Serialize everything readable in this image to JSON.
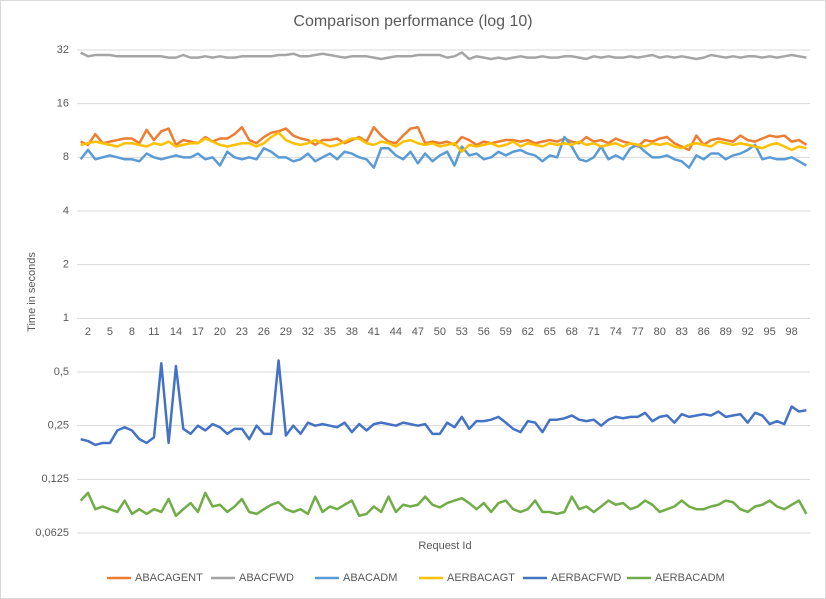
{
  "chart_data": {
    "type": "line",
    "title": "Comparison performance (log 10)",
    "x_label": "Request Id",
    "y_label": "Time in seconds",
    "yscale": "log",
    "grid": true,
    "legend": "bottom",
    "xaxis_crosses": 1,
    "ylim": [
      0.0625,
      32
    ],
    "yticks": [
      {
        "value": 0.0625,
        "label": "0,0625"
      },
      {
        "value": 0.125,
        "label": "0,125"
      },
      {
        "value": 0.25,
        "label": "0,25"
      },
      {
        "value": 0.5,
        "label": "0,5"
      },
      1,
      2,
      4,
      8,
      16,
      32
    ],
    "categories": [
      null,
      "2",
      null,
      null,
      "5",
      null,
      null,
      "8",
      null,
      null,
      "11",
      null,
      null,
      "14",
      null,
      null,
      "17",
      null,
      null,
      "20",
      null,
      null,
      "23",
      null,
      null,
      "26",
      null,
      null,
      "29",
      null,
      null,
      "32",
      null,
      null,
      "35",
      null,
      null,
      "38",
      null,
      null,
      "41",
      null,
      null,
      "44",
      null,
      null,
      "47",
      null,
      null,
      "50",
      null,
      null,
      "53",
      null,
      null,
      "56",
      null,
      null,
      "59",
      null,
      null,
      "62",
      null,
      null,
      "65",
      null,
      null,
      "68",
      null,
      null,
      "71",
      null,
      null,
      "74",
      null,
      null,
      "77",
      null,
      null,
      "80",
      null,
      null,
      "83",
      null,
      null,
      "86",
      null,
      null,
      "89",
      null,
      null,
      "92",
      null,
      null,
      "95",
      null,
      null,
      "98",
      null,
      null
    ],
    "series": [
      {
        "name": "ABACAGENT",
        "color": "#ed7d31",
        "values": [
          9.8,
          9.4,
          10.8,
          9.6,
          9.8,
          10,
          10.2,
          10.2,
          9.6,
          11.4,
          10,
          11.2,
          11.6,
          9.4,
          10,
          9.8,
          9.6,
          10.4,
          9.8,
          10.2,
          10.2,
          10.8,
          11.8,
          10,
          9.6,
          10.4,
          11,
          11.2,
          11.6,
          10.6,
          10.2,
          10,
          9.4,
          10,
          10,
          10.2,
          9.6,
          10,
          10.4,
          9.8,
          11.8,
          10.6,
          9.8,
          9.6,
          10.6,
          11.6,
          11.8,
          9.6,
          9.8,
          9.6,
          9.8,
          9.4,
          10.4,
          10,
          9.4,
          9.8,
          9.6,
          9.8,
          10,
          10,
          9.8,
          10,
          9.6,
          9.8,
          10,
          9.8,
          10.2,
          9.8,
          9.6,
          10.4,
          9.8,
          10,
          9.6,
          10.2,
          9.8,
          9.6,
          9.2,
          10,
          9.8,
          10.2,
          10.4,
          9.6,
          9.2,
          8.8,
          10.6,
          9.4,
          10,
          10.2,
          10,
          9.8,
          10.6,
          10,
          9.8,
          10.2,
          10.6,
          10.4,
          10.6,
          9.8,
          10,
          9.4
        ]
      },
      {
        "name": "ABACFWD",
        "color": "#a5a5a5",
        "values": [
          31,
          29.5,
          30,
          30,
          30,
          29.5,
          29.5,
          29.5,
          29.5,
          29.5,
          29.5,
          29.5,
          29,
          29,
          30,
          29,
          29,
          29.5,
          29,
          29.5,
          29,
          29,
          29.5,
          29.5,
          29.5,
          29.5,
          29.5,
          30,
          30,
          30.5,
          29.5,
          29.5,
          30,
          30.5,
          30,
          29.5,
          29,
          29.5,
          29.5,
          29.5,
          29,
          28.5,
          29,
          29.5,
          29.5,
          29.5,
          30,
          30,
          30,
          30,
          29,
          29.5,
          31,
          28.5,
          29.5,
          29,
          28.5,
          29,
          28.5,
          29,
          29.5,
          29,
          29,
          29.5,
          29,
          29,
          29.5,
          29.5,
          29,
          28.5,
          29.5,
          29,
          29.5,
          29,
          29,
          29.5,
          29,
          29.5,
          30,
          29,
          29.5,
          29,
          29.5,
          29,
          28.5,
          29,
          30,
          29.5,
          29,
          29.5,
          29,
          29.5,
          29.5,
          29,
          29.5,
          29,
          29.5,
          30,
          29.5,
          29
        ]
      },
      {
        "name": "ABACADM",
        "color": "#5b9bd5",
        "values": [
          7.8,
          8.8,
          7.8,
          8,
          8.2,
          8,
          7.8,
          7.8,
          7.6,
          8.4,
          8,
          7.8,
          8,
          8.2,
          8,
          8,
          8.4,
          7.8,
          8,
          7.2,
          8.6,
          8,
          7.8,
          8,
          7.8,
          9,
          8.6,
          8,
          8,
          7.6,
          7.8,
          8.4,
          7.6,
          8,
          8.4,
          7.8,
          8.6,
          8.4,
          8,
          7.8,
          7,
          9,
          9,
          8.2,
          7.8,
          8.6,
          7.4,
          8.4,
          7.6,
          8.2,
          8.6,
          7.2,
          9.2,
          8.2,
          8.4,
          7.8,
          8,
          8.6,
          8.2,
          8.6,
          8.8,
          8.4,
          8.2,
          7.6,
          8.2,
          8,
          10.4,
          9.2,
          7.8,
          7.6,
          8,
          9.2,
          7.8,
          8.2,
          7.8,
          9,
          9.4,
          8.6,
          8,
          8,
          8.2,
          7.8,
          7.6,
          7,
          8.2,
          7.8,
          8.4,
          8.4,
          7.8,
          8.2,
          8.4,
          8.8,
          9.4,
          7.8,
          8,
          7.8,
          7.8,
          8,
          7.6,
          7.2
        ]
      },
      {
        "name": "AERBACAGT",
        "color": "#ffc000",
        "values": [
          9.4,
          9.6,
          9.8,
          9.6,
          9.4,
          9.2,
          9.6,
          9.6,
          9.4,
          9.2,
          9.6,
          9.4,
          9.8,
          9.2,
          9.4,
          9.6,
          9.6,
          10.2,
          9.8,
          9.4,
          9.2,
          9.4,
          9.6,
          9.6,
          9.2,
          9.6,
          10.4,
          11,
          10,
          9.6,
          9.4,
          9.6,
          10,
          9.6,
          9.2,
          9.4,
          9.8,
          10.2,
          10.2,
          9.6,
          9.4,
          9.8,
          9.6,
          9.2,
          9.8,
          10,
          9.6,
          9.4,
          9.6,
          9.2,
          9.4,
          9.6,
          8.6,
          9.4,
          9.2,
          9.4,
          9.6,
          9.2,
          9.4,
          9.8,
          9.2,
          9.6,
          9.4,
          9.2,
          9.6,
          9.4,
          9.6,
          9.4,
          9.8,
          9.4,
          9.6,
          9.2,
          9.4,
          9.6,
          9.2,
          9.6,
          9.4,
          9.2,
          9.6,
          9.4,
          9.6,
          9.2,
          9,
          9.4,
          9.6,
          9.4,
          9.2,
          9.8,
          9.6,
          9.4,
          9.6,
          9.4,
          9.2,
          9,
          9.4,
          9.6,
          9.2,
          8.8,
          9.2,
          9
        ]
      },
      {
        "name": "AERBACFWD",
        "color": "#4472c4",
        "values": [
          0.21,
          0.205,
          0.195,
          0.2,
          0.2,
          0.235,
          0.245,
          0.235,
          0.21,
          0.2,
          0.215,
          0.56,
          0.2,
          0.54,
          0.24,
          0.225,
          0.25,
          0.235,
          0.255,
          0.245,
          0.225,
          0.24,
          0.24,
          0.21,
          0.25,
          0.225,
          0.225,
          0.58,
          0.22,
          0.25,
          0.225,
          0.26,
          0.25,
          0.255,
          0.25,
          0.245,
          0.26,
          0.23,
          0.255,
          0.235,
          0.255,
          0.26,
          0.255,
          0.25,
          0.26,
          0.255,
          0.25,
          0.255,
          0.225,
          0.225,
          0.26,
          0.245,
          0.28,
          0.24,
          0.265,
          0.265,
          0.27,
          0.28,
          0.26,
          0.24,
          0.23,
          0.265,
          0.26,
          0.23,
          0.27,
          0.27,
          0.275,
          0.285,
          0.27,
          0.265,
          0.27,
          0.25,
          0.27,
          0.28,
          0.275,
          0.28,
          0.28,
          0.295,
          0.265,
          0.28,
          0.285,
          0.26,
          0.29,
          0.28,
          0.285,
          0.29,
          0.285,
          0.3,
          0.28,
          0.285,
          0.29,
          0.26,
          0.295,
          0.285,
          0.255,
          0.265,
          0.255,
          0.32,
          0.3,
          0.305
        ]
      },
      {
        "name": "AERBACADM",
        "color": "#70ad47",
        "values": [
          0.095,
          0.105,
          0.085,
          0.088,
          0.085,
          0.082,
          0.095,
          0.08,
          0.085,
          0.08,
          0.085,
          0.082,
          0.097,
          0.078,
          0.085,
          0.092,
          0.082,
          0.105,
          0.088,
          0.09,
          0.082,
          0.088,
          0.097,
          0.082,
          0.08,
          0.085,
          0.09,
          0.093,
          0.085,
          0.082,
          0.085,
          0.08,
          0.1,
          0.082,
          0.088,
          0.085,
          0.09,
          0.095,
          0.078,
          0.08,
          0.088,
          0.082,
          0.1,
          0.082,
          0.09,
          0.088,
          0.09,
          0.1,
          0.09,
          0.087,
          0.092,
          0.095,
          0.098,
          0.092,
          0.085,
          0.092,
          0.082,
          0.092,
          0.095,
          0.085,
          0.082,
          0.085,
          0.095,
          0.082,
          0.082,
          0.08,
          0.082,
          0.1,
          0.085,
          0.088,
          0.082,
          0.088,
          0.095,
          0.09,
          0.092,
          0.085,
          0.088,
          0.095,
          0.09,
          0.082,
          0.085,
          0.088,
          0.095,
          0.088,
          0.085,
          0.085,
          0.088,
          0.09,
          0.095,
          0.093,
          0.085,
          0.082,
          0.088,
          0.09,
          0.095,
          0.088,
          0.085,
          0.09,
          0.095,
          0.08
        ]
      }
    ]
  }
}
